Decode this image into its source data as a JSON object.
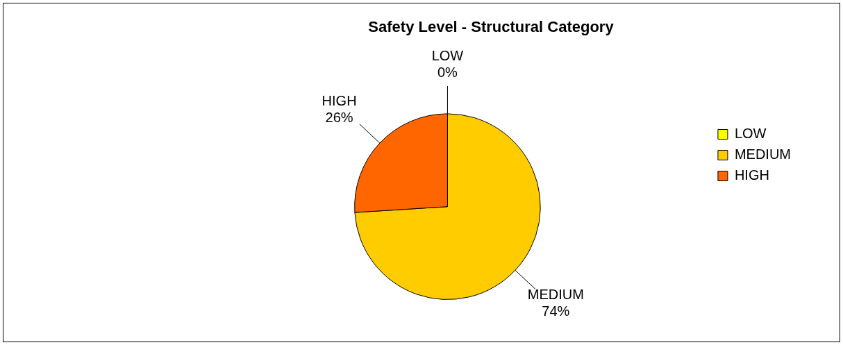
{
  "chart_data": {
    "type": "pie",
    "title": "Safety Level - Structural Category",
    "categories": [
      "LOW",
      "MEDIUM",
      "HIGH"
    ],
    "values": [
      0,
      74,
      26
    ],
    "value_labels": [
      "0%",
      "74%",
      "26%"
    ],
    "colors": [
      "#ffff00",
      "#ffcc00",
      "#ff6600"
    ],
    "legend": "right"
  }
}
